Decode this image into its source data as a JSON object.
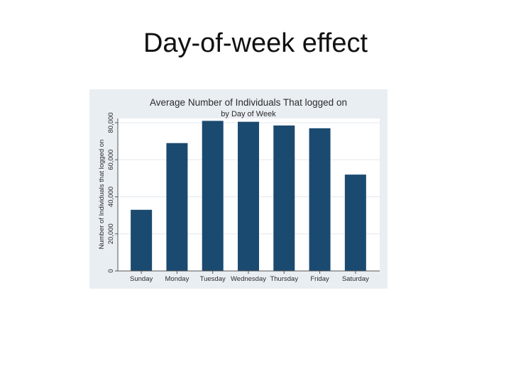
{
  "slide": {
    "title": "Day-of-week effect"
  },
  "chart_data": {
    "type": "bar",
    "title": "Average Number of Individuals That logged on",
    "subtitle": "by Day of Week",
    "xlabel": "",
    "ylabel": "Number of Individuals that logged on",
    "categories": [
      "Sunday",
      "Monday",
      "Tuesday",
      "Wednesday",
      "Thursday",
      "Friday",
      "Saturday"
    ],
    "values": [
      33000,
      69000,
      81000,
      80500,
      78500,
      77000,
      52000
    ],
    "ylim": [
      0,
      80000
    ],
    "yticks": [
      0,
      20000,
      40000,
      60000,
      80000
    ],
    "ytick_labels": [
      "0",
      "20,000",
      "40,000",
      "60,000",
      "80,000"
    ],
    "grid": true,
    "bar_color": "#1b4a70",
    "plot_background": "#ffffff",
    "frame_background": "#e9eef3",
    "grid_color": "#e2e8ee"
  }
}
